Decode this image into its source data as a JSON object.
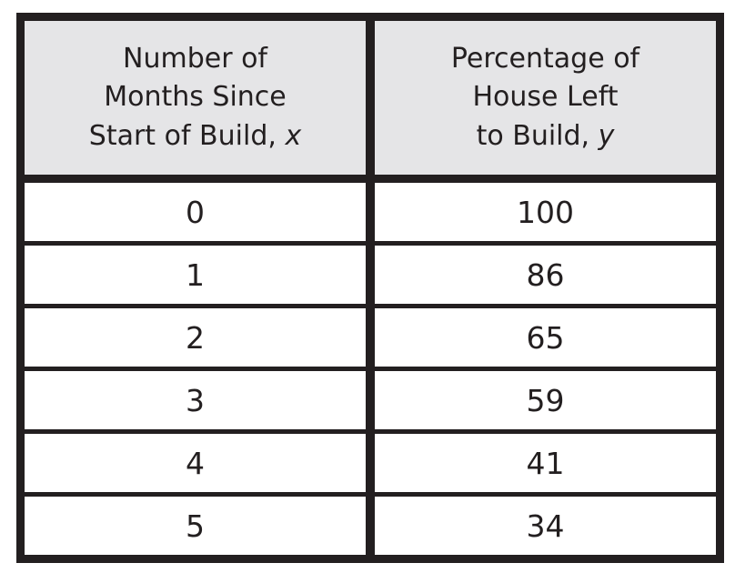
{
  "chart_data": {
    "type": "table",
    "columns": [
      "Number of Months Since Start of Build, x",
      "Percentage of House Left to Build, y"
    ],
    "x": [
      0,
      1,
      2,
      3,
      4,
      5
    ],
    "y": [
      100,
      86,
      65,
      59,
      41,
      34
    ]
  },
  "colors": {
    "border": "#231f20",
    "header_bg": "#e5e5e7",
    "background": "#ffffff"
  },
  "table": {
    "header_left": {
      "line1": "Number of",
      "line2": "Months Since",
      "line3": "Start of Build, ",
      "var": "x"
    },
    "header_right": {
      "line1": "Percentage of",
      "line2": "House Left",
      "line3": "to Build, ",
      "var": "y"
    },
    "rows": [
      {
        "x": "0",
        "y": "100"
      },
      {
        "x": "1",
        "y": "86"
      },
      {
        "x": "2",
        "y": "65"
      },
      {
        "x": "3",
        "y": "59"
      },
      {
        "x": "4",
        "y": "41"
      },
      {
        "x": "5",
        "y": "34"
      }
    ]
  }
}
